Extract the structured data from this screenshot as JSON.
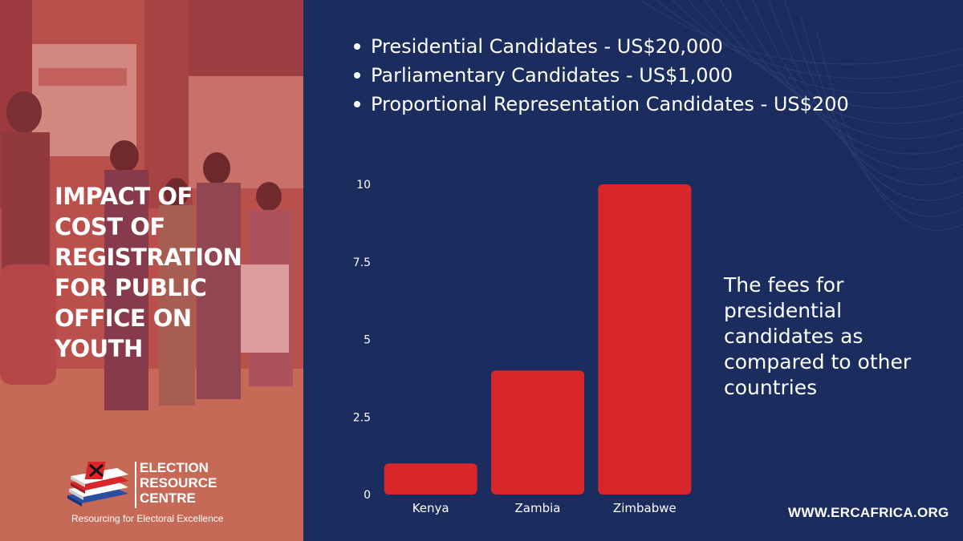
{
  "headline": [
    "IMPACT OF",
    "COST OF",
    "REGISTRATION",
    "FOR PUBLIC",
    "OFFICE ON",
    "YOUTH"
  ],
  "bullets": [
    "Presidential Candidates - US$20,000",
    "Parliamentary Candidates - US$1,000",
    "Proportional Representation Candidates - US$200"
  ],
  "logo": {
    "lines": [
      "ELECTION",
      "RESOURCE",
      "CENTRE"
    ],
    "tagline": "Resourcing for Electoral Excellence"
  },
  "note": "The fees for presidential candidates as compared to other countries",
  "website": "WWW.ERCAFRICA.ORG",
  "colors": {
    "background": "#1b2d5e",
    "bar": "#d9262b",
    "text": "#ffffff",
    "logo_red": "#d9262b",
    "logo_blue": "#2a4ea0"
  },
  "chart_data": {
    "type": "bar",
    "categories": [
      "Kenya",
      "Zambia",
      "Zimbabwe"
    ],
    "values": [
      1,
      4,
      10
    ],
    "ylim": [
      0,
      10
    ],
    "yticks": [
      0,
      2.5,
      5,
      7.5,
      10
    ],
    "ytick_labels": [
      "0",
      "2.5",
      "5",
      "7.5",
      "10"
    ],
    "grid": false,
    "title": "",
    "xlabel": "",
    "ylabel": ""
  }
}
